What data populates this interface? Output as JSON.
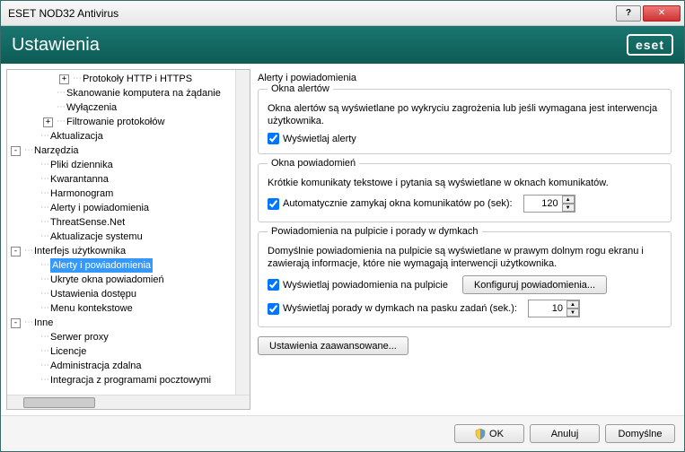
{
  "window": {
    "title": "ESET NOD32 Antivirus"
  },
  "header": {
    "title": "Ustawienia",
    "logo": "eset"
  },
  "tree": [
    {
      "depth": 3,
      "expand": "+",
      "label": "Protokoły HTTP i HTTPS"
    },
    {
      "depth": 2,
      "expand": "",
      "label": "Skanowanie komputera na żądanie"
    },
    {
      "depth": 2,
      "expand": "",
      "label": "Wyłączenia"
    },
    {
      "depth": 2,
      "expand": "+",
      "label": "Filtrowanie protokołów"
    },
    {
      "depth": 1,
      "expand": "",
      "label": "Aktualizacja"
    },
    {
      "depth": 0,
      "expand": "-",
      "label": "Narzędzia"
    },
    {
      "depth": 1,
      "expand": "",
      "label": "Pliki dziennika"
    },
    {
      "depth": 1,
      "expand": "",
      "label": "Kwarantanna"
    },
    {
      "depth": 1,
      "expand": "",
      "label": "Harmonogram"
    },
    {
      "depth": 1,
      "expand": "",
      "label": "Alerty i powiadomienia"
    },
    {
      "depth": 1,
      "expand": "",
      "label": "ThreatSense.Net"
    },
    {
      "depth": 1,
      "expand": "",
      "label": "Aktualizacje systemu"
    },
    {
      "depth": 0,
      "expand": "-",
      "label": "Interfejs użytkownika"
    },
    {
      "depth": 1,
      "expand": "",
      "label": "Alerty i powiadomienia",
      "selected": true
    },
    {
      "depth": 1,
      "expand": "",
      "label": "Ukryte okna powiadomień"
    },
    {
      "depth": 1,
      "expand": "",
      "label": "Ustawienia dostępu"
    },
    {
      "depth": 1,
      "expand": "",
      "label": "Menu kontekstowe"
    },
    {
      "depth": 0,
      "expand": "-",
      "label": "Inne"
    },
    {
      "depth": 1,
      "expand": "",
      "label": "Serwer proxy"
    },
    {
      "depth": 1,
      "expand": "",
      "label": "Licencje"
    },
    {
      "depth": 1,
      "expand": "",
      "label": "Administracja zdalna"
    },
    {
      "depth": 1,
      "expand": "",
      "label": "Integracja z programami pocztowymi"
    }
  ],
  "main": {
    "title": "Alerty i powiadomienia",
    "alertWindows": {
      "legend": "Okna alertów",
      "desc": "Okna alertów są wyświetlane po wykryciu zagrożenia lub jeśli wymagana jest interwencja użytkownika.",
      "chkShow": "Wyświetlaj alerty"
    },
    "notifWindows": {
      "legend": "Okna powiadomień",
      "desc": "Krótkie komunikaty tekstowe i pytania są wyświetlane w oknach komunikatów.",
      "chkAuto": "Automatycznie zamykaj okna komunikatów po (sek):",
      "autoValue": "120"
    },
    "desktop": {
      "legend": "Powiadomienia na pulpicie i porady w dymkach",
      "desc": "Domyślnie powiadomienia na pulpicie są wyświetlane w prawym dolnym rogu ekranu i zawierają informacje, które nie wymagają interwencji użytkownika.",
      "chkDesktop": "Wyświetlaj powiadomienia na pulpicie",
      "btnConfigure": "Konfiguruj powiadomienia...",
      "chkBalloon": "Wyświetlaj porady w dymkach na pasku zadań (sek.):",
      "balloonValue": "10"
    },
    "btnAdvanced": "Ustawienia zaawansowane..."
  },
  "footer": {
    "ok": "OK",
    "cancel": "Anuluj",
    "default": "Domyślne"
  }
}
